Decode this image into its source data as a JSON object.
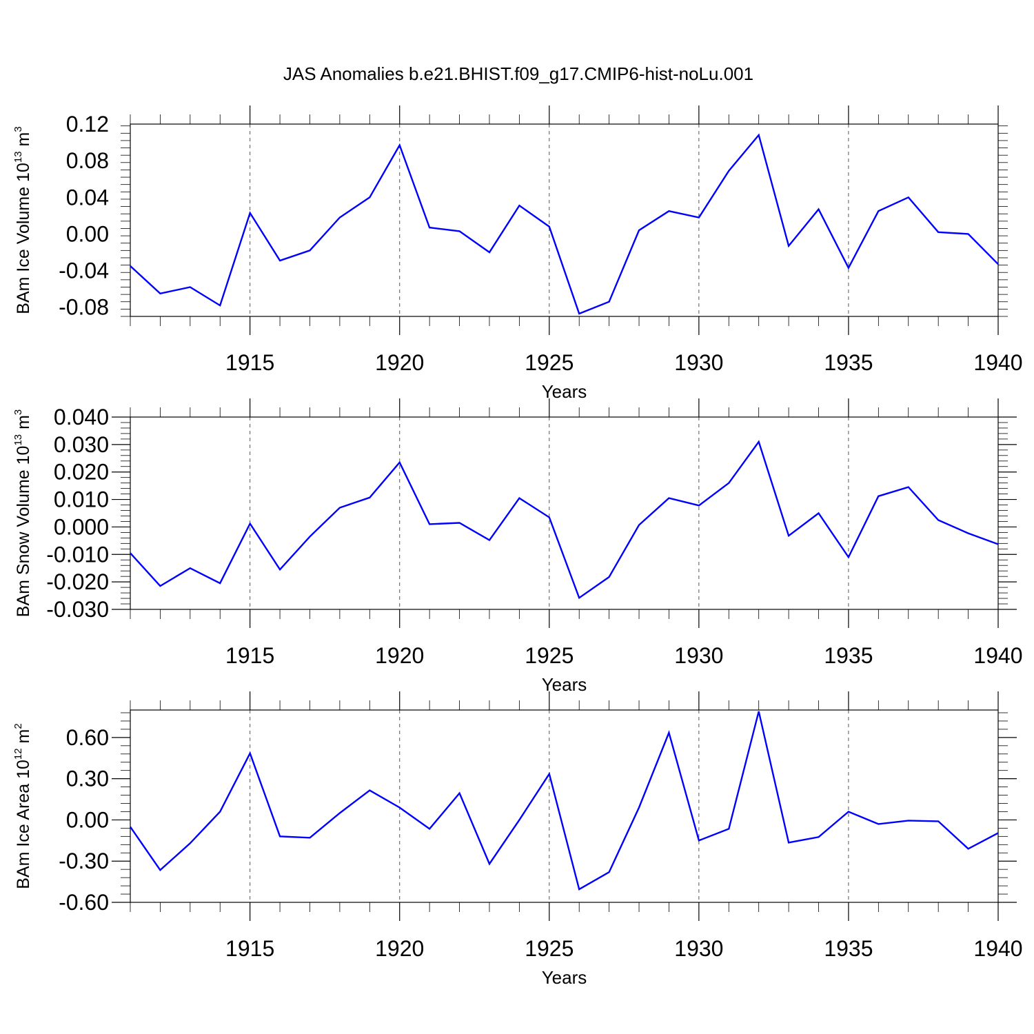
{
  "title": "JAS Anomalies b.e21.BHIST.f09_g17.CMIP6-hist-noLu.001",
  "colors": {
    "series": "#0000ff",
    "grid": "#555555",
    "axis": "#000000"
  },
  "chart_data": [
    {
      "type": "line",
      "ylabel": "BAm Ice Volume 10",
      "ylabel_exp": "13",
      "ylabel_unit": " m",
      "ylabel_unit_exp": "3",
      "xlabel": "Years",
      "xlim": [
        1911,
        1940
      ],
      "ylim": [
        -0.09,
        0.12
      ],
      "yticks": [
        "0.12",
        "0.08",
        "0.04",
        "0.00",
        "-0.04",
        "-0.08"
      ],
      "ytick_values": [
        0.12,
        0.08,
        0.04,
        0.0,
        -0.04,
        -0.08
      ],
      "xticks": [
        "1915",
        "1920",
        "1925",
        "1930",
        "1935",
        "1940"
      ],
      "xtick_values": [
        1915,
        1920,
        1925,
        1930,
        1935,
        1940
      ],
      "x": [
        1911,
        1912,
        1913,
        1914,
        1915,
        1916,
        1917,
        1918,
        1919,
        1920,
        1921,
        1922,
        1923,
        1924,
        1925,
        1926,
        1927,
        1928,
        1929,
        1930,
        1931,
        1932,
        1933,
        1934,
        1935,
        1936,
        1937,
        1938,
        1939,
        1940
      ],
      "values": [
        -0.035,
        -0.065,
        -0.058,
        -0.078,
        0.023,
        -0.029,
        -0.018,
        0.018,
        0.04,
        0.097,
        0.007,
        0.003,
        -0.02,
        0.031,
        0.008,
        -0.087,
        -0.074,
        0.004,
        0.025,
        0.018,
        0.069,
        0.108,
        -0.013,
        0.027,
        -0.037,
        0.025,
        0.04,
        0.002,
        0.0,
        -0.033
      ]
    },
    {
      "type": "line",
      "ylabel": "BAm Snow Volume 10",
      "ylabel_exp": "13",
      "ylabel_unit": " m",
      "ylabel_unit_exp": "3",
      "xlabel": "Years",
      "xlim": [
        1911,
        1940
      ],
      "ylim": [
        -0.03,
        0.04
      ],
      "yticks": [
        "0.040",
        "0.030",
        "0.020",
        "0.010",
        "0.000",
        "-0.010",
        "-0.020",
        "-0.030"
      ],
      "ytick_values": [
        0.04,
        0.03,
        0.02,
        0.01,
        0.0,
        -0.01,
        -0.02,
        -0.03
      ],
      "xticks": [
        "1915",
        "1920",
        "1925",
        "1930",
        "1935",
        "1940"
      ],
      "xtick_values": [
        1915,
        1920,
        1925,
        1930,
        1935,
        1940
      ],
      "x": [
        1911,
        1912,
        1913,
        1914,
        1915,
        1916,
        1917,
        1918,
        1919,
        1920,
        1921,
        1922,
        1923,
        1924,
        1925,
        1926,
        1927,
        1928,
        1929,
        1930,
        1931,
        1932,
        1933,
        1934,
        1935,
        1936,
        1937,
        1938,
        1939,
        1940
      ],
      "values": [
        -0.0095,
        -0.0215,
        -0.015,
        -0.0205,
        0.0012,
        -0.0155,
        -0.0035,
        0.007,
        0.0107,
        0.0235,
        0.001,
        0.0015,
        -0.0048,
        0.0105,
        0.0035,
        -0.0258,
        -0.0182,
        0.0007,
        0.0105,
        0.0078,
        0.016,
        0.031,
        -0.0032,
        0.005,
        -0.011,
        0.0112,
        0.0145,
        0.0025,
        -0.0023,
        -0.0063
      ]
    },
    {
      "type": "line",
      "ylabel": "BAm Ice Area 10",
      "ylabel_exp": "12",
      "ylabel_unit": " m",
      "ylabel_unit_exp": "2",
      "xlabel": "Years",
      "xlim": [
        1911,
        1940
      ],
      "ylim": [
        -0.6,
        0.8
      ],
      "yticks": [
        "0.60",
        "0.30",
        "0.00",
        "-0.30",
        "-0.60"
      ],
      "ytick_values": [
        0.6,
        0.3,
        0.0,
        -0.3,
        -0.6
      ],
      "xticks": [
        "1915",
        "1920",
        "1925",
        "1930",
        "1935",
        "1940"
      ],
      "xtick_values": [
        1915,
        1920,
        1925,
        1930,
        1935,
        1940
      ],
      "x": [
        1911,
        1912,
        1913,
        1914,
        1915,
        1916,
        1917,
        1918,
        1919,
        1920,
        1921,
        1922,
        1923,
        1924,
        1925,
        1926,
        1927,
        1928,
        1929,
        1930,
        1931,
        1932,
        1933,
        1934,
        1935,
        1936,
        1937,
        1938,
        1939,
        1940
      ],
      "values": [
        -0.05,
        -0.365,
        -0.17,
        0.06,
        0.485,
        -0.12,
        -0.13,
        0.05,
        0.215,
        0.09,
        -0.065,
        0.195,
        -0.32,
        0.0,
        0.335,
        -0.505,
        -0.38,
        0.09,
        0.635,
        -0.15,
        -0.065,
        0.79,
        -0.165,
        -0.125,
        0.06,
        -0.03,
        -0.005,
        -0.01,
        -0.21,
        -0.095
      ]
    }
  ]
}
